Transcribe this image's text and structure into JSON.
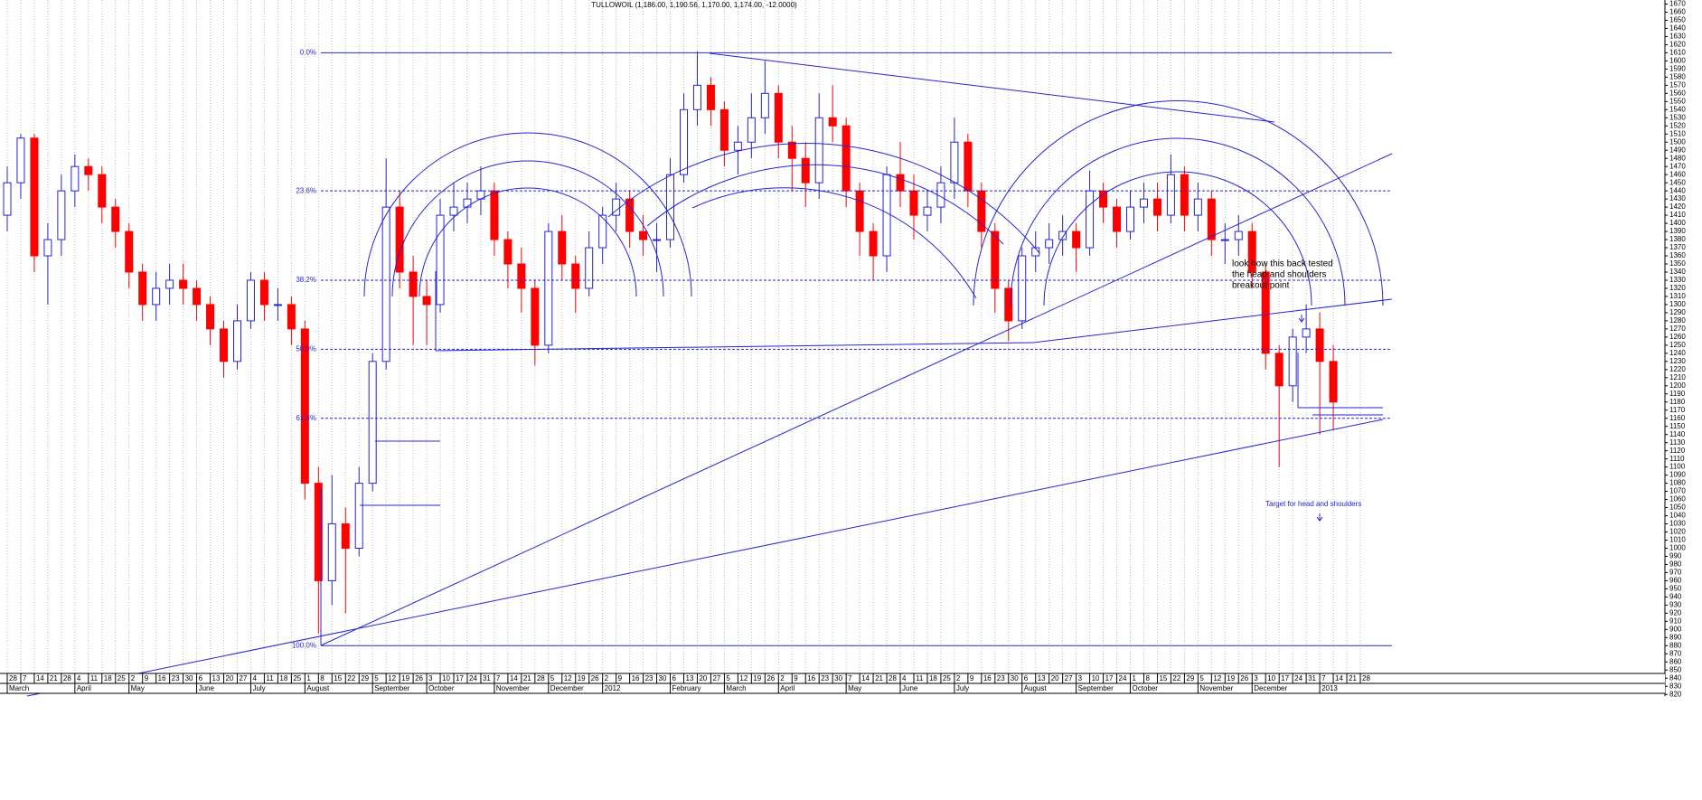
{
  "chart_data": {
    "type": "candlestick",
    "title": "TULLOWOIL (1,186.00, 1,190.56, 1,170.00, 1,174.00, -12.0000)",
    "up_color": "#2424d6",
    "down_color": "#ff0000",
    "grid": true,
    "categories": [
      "28",
      "7",
      "14",
      "21",
      "28",
      "4",
      "11",
      "18",
      "25",
      "2",
      "9",
      "16",
      "23",
      "30",
      "6",
      "13",
      "20",
      "27",
      "4",
      "11",
      "18",
      "25",
      "1",
      "8",
      "15",
      "22",
      "29",
      "5",
      "12",
      "19",
      "26",
      "3",
      "10",
      "17",
      "24",
      "31",
      "7",
      "14",
      "21",
      "28",
      "5",
      "12",
      "19",
      "26",
      "2",
      "9",
      "16",
      "23",
      "30",
      "6",
      "13",
      "20",
      "27",
      "5",
      "12",
      "19",
      "26",
      "2",
      "9",
      "16",
      "23",
      "30",
      "7",
      "14",
      "21",
      "28",
      "4",
      "11",
      "18",
      "25",
      "2",
      "9",
      "16",
      "23",
      "30",
      "6",
      "13",
      "20",
      "27",
      "3",
      "10",
      "17",
      "24",
      "1",
      "8",
      "15",
      "22",
      "29",
      "5",
      "12",
      "19",
      "26",
      "3",
      "10",
      "17",
      "24",
      "31",
      "7",
      "14",
      "21",
      "28"
    ],
    "months": [
      "March",
      null,
      null,
      null,
      null,
      "April",
      null,
      null,
      null,
      "May",
      null,
      null,
      null,
      null,
      "June",
      null,
      null,
      null,
      "July",
      null,
      null,
      null,
      "August",
      null,
      null,
      null,
      null,
      "September",
      null,
      null,
      null,
      "October",
      null,
      null,
      null,
      null,
      "November",
      null,
      null,
      null,
      "December",
      null,
      null,
      null,
      "2012",
      null,
      null,
      null,
      null,
      "February",
      null,
      null,
      null,
      "March",
      null,
      null,
      null,
      "April",
      null,
      null,
      null,
      null,
      "May",
      null,
      null,
      null,
      "June",
      null,
      null,
      null,
      "July",
      null,
      null,
      null,
      null,
      "August",
      null,
      null,
      null,
      "September",
      null,
      null,
      null,
      "October",
      null,
      null,
      null,
      null,
      "November",
      null,
      null,
      null,
      "December",
      null,
      null,
      null,
      null,
      "2013",
      null,
      null,
      null
    ],
    "open": [
      1410,
      1450,
      1505,
      1360,
      1380,
      1440,
      1470,
      1460,
      1420,
      1390,
      1340,
      1300,
      1320,
      1330,
      1320,
      1300,
      1270,
      1230,
      1280,
      1330,
      1300,
      1300,
      1270,
      1080,
      960,
      1030,
      1000,
      1080,
      1230,
      1420,
      1340,
      1310,
      1300,
      1410,
      1420,
      1430,
      1440,
      1380,
      1350,
      1320,
      1250,
      1390,
      1350,
      1320,
      1370,
      1410,
      1430,
      1390,
      1380,
      1380,
      1460,
      1540,
      1570,
      1540,
      1490,
      1500,
      1530,
      1560,
      1500,
      1480,
      1450,
      1530,
      1520,
      1440,
      1390,
      1360,
      1460,
      1440,
      1410,
      1420,
      1450,
      1500,
      1440,
      1390,
      1320,
      1280,
      1360,
      1370,
      1380,
      1390,
      1370,
      1440,
      1420,
      1390,
      1420,
      1430,
      1410,
      1460,
      1410,
      1430,
      1380,
      1380,
      1390,
      1340,
      1240,
      1200,
      1260,
      1270,
      1230,
      null,
      null
    ],
    "high": [
      1470,
      1510,
      1510,
      1400,
      1460,
      1485,
      1480,
      1470,
      1430,
      1400,
      1350,
      1340,
      1350,
      1350,
      1330,
      1310,
      1280,
      1300,
      1340,
      1340,
      1320,
      1310,
      1280,
      1100,
      1090,
      1050,
      1100,
      1240,
      1480,
      1440,
      1360,
      1330,
      1430,
      1450,
      1450,
      1470,
      1450,
      1390,
      1370,
      1330,
      1400,
      1410,
      1360,
      1390,
      1420,
      1450,
      1440,
      1410,
      1400,
      1480,
      1560,
      1612,
      1580,
      1550,
      1520,
      1560,
      1600,
      1570,
      1520,
      1500,
      1560,
      1570,
      1530,
      1450,
      1400,
      1470,
      1500,
      1460,
      1440,
      1470,
      1530,
      1510,
      1450,
      1400,
      1330,
      1370,
      1390,
      1400,
      1410,
      1400,
      1465,
      1450,
      1430,
      1440,
      1450,
      1450,
      1485,
      1470,
      1450,
      1440,
      1400,
      1410,
      1400,
      1350,
      1250,
      1270,
      1300,
      1290,
      1250,
      null,
      null
    ],
    "low": [
      1390,
      1430,
      1340,
      1300,
      1360,
      1420,
      1440,
      1400,
      1370,
      1320,
      1280,
      1280,
      1300,
      1300,
      1280,
      1250,
      1210,
      1220,
      1270,
      1280,
      1280,
      1250,
      1060,
      895,
      930,
      920,
      990,
      1070,
      1220,
      1320,
      1250,
      1250,
      1290,
      1390,
      1400,
      1410,
      1360,
      1320,
      1290,
      1225,
      1240,
      1330,
      1290,
      1310,
      1350,
      1390,
      1370,
      1360,
      1340,
      1370,
      1450,
      1520,
      1520,
      1470,
      1460,
      1480,
      1510,
      1480,
      1440,
      1420,
      1430,
      1500,
      1420,
      1360,
      1330,
      1340,
      1420,
      1380,
      1390,
      1400,
      1430,
      1420,
      1370,
      1290,
      1255,
      1270,
      1340,
      1350,
      1360,
      1340,
      1360,
      1400,
      1370,
      1380,
      1400,
      1390,
      1400,
      1390,
      1390,
      1360,
      1350,
      1360,
      1320,
      1220,
      1100,
      1180,
      1240,
      1140,
      1145,
      null,
      null
    ],
    "close": [
      1450,
      1505,
      1360,
      1380,
      1440,
      1470,
      1460,
      1420,
      1390,
      1340,
      1300,
      1320,
      1330,
      1320,
      1300,
      1270,
      1230,
      1280,
      1330,
      1300,
      1300,
      1270,
      1080,
      960,
      1030,
      1000,
      1080,
      1230,
      1420,
      1340,
      1310,
      1300,
      1410,
      1420,
      1430,
      1440,
      1380,
      1350,
      1320,
      1250,
      1390,
      1350,
      1320,
      1370,
      1410,
      1430,
      1390,
      1380,
      1380,
      1460,
      1540,
      1570,
      1540,
      1490,
      1500,
      1530,
      1560,
      1500,
      1480,
      1450,
      1530,
      1520,
      1440,
      1390,
      1360,
      1460,
      1440,
      1410,
      1420,
      1450,
      1500,
      1440,
      1390,
      1320,
      1280,
      1360,
      1370,
      1380,
      1390,
      1370,
      1440,
      1420,
      1390,
      1420,
      1430,
      1410,
      1460,
      1410,
      1430,
      1380,
      1380,
      1390,
      1340,
      1240,
      1200,
      1260,
      1270,
      1230,
      1180,
      null,
      null
    ],
    "ylim": [
      818,
      1675
    ],
    "yticks": [
      820,
      830,
      840,
      850,
      860,
      870,
      880,
      890,
      900,
      910,
      920,
      930,
      940,
      950,
      960,
      970,
      980,
      990,
      1000,
      1010,
      1020,
      1030,
      1040,
      1050,
      1060,
      1070,
      1080,
      1090,
      1100,
      1110,
      1120,
      1130,
      1140,
      1150,
      1160,
      1170,
      1180,
      1190,
      1200,
      1210,
      1220,
      1230,
      1240,
      1250,
      1260,
      1270,
      1280,
      1290,
      1300,
      1310,
      1320,
      1330,
      1340,
      1350,
      1360,
      1370,
      1380,
      1390,
      1400,
      1410,
      1420,
      1430,
      1440,
      1450,
      1460,
      1470,
      1480,
      1490,
      1500,
      1510,
      1520,
      1530,
      1540,
      1550,
      1560,
      1570,
      1580,
      1590,
      1600,
      1610,
      1620,
      1630,
      1640,
      1650,
      1660,
      1670
    ],
    "fib_levels": [
      {
        "label": "0.0%",
        "value": 1610
      },
      {
        "label": "23.6%",
        "value": 1440
      },
      {
        "label": "38.2%",
        "value": 1330
      },
      {
        "label": "50.0%",
        "value": 1245
      },
      {
        "label": "61.8%",
        "value": 1160
      },
      {
        "label": "100.0%",
        "value": 880
      }
    ],
    "annotations": [
      "look how this back tested",
      "the head and shoulders",
      "breakout point"
    ],
    "target_note": "Target for head and shoulders"
  }
}
